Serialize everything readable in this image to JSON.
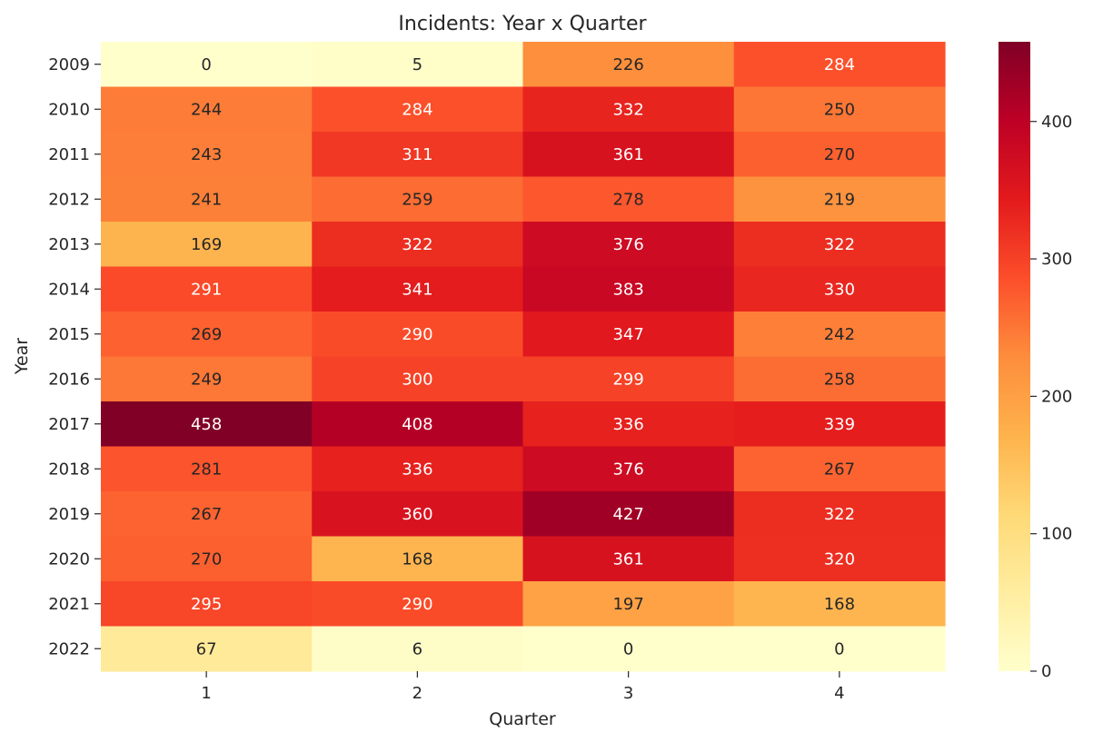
{
  "chart_data": {
    "type": "heatmap",
    "title": "Incidents: Year x Quarter",
    "xlabel": "Quarter",
    "ylabel": "Year",
    "x_categories": [
      "1",
      "2",
      "3",
      "4"
    ],
    "y_categories": [
      "2009",
      "2010",
      "2011",
      "2012",
      "2013",
      "2014",
      "2015",
      "2016",
      "2017",
      "2018",
      "2019",
      "2020",
      "2021",
      "2022"
    ],
    "values": [
      [
        0,
        5,
        226,
        284
      ],
      [
        244,
        284,
        332,
        250
      ],
      [
        243,
        311,
        361,
        270
      ],
      [
        241,
        259,
        278,
        219
      ],
      [
        169,
        322,
        376,
        322
      ],
      [
        291,
        341,
        383,
        330
      ],
      [
        269,
        290,
        347,
        242
      ],
      [
        249,
        300,
        299,
        258
      ],
      [
        458,
        408,
        336,
        339
      ],
      [
        281,
        336,
        376,
        267
      ],
      [
        267,
        360,
        427,
        322
      ],
      [
        270,
        168,
        361,
        320
      ],
      [
        295,
        290,
        197,
        168
      ],
      [
        67,
        6,
        0,
        0
      ]
    ],
    "colormap": "YlOrRd",
    "color_range": [
      0,
      458
    ],
    "colorbar_ticks": [
      0,
      100,
      200,
      300,
      400
    ],
    "colorbar_tick_labels": [
      "0",
      "100",
      "200",
      "300",
      "400"
    ],
    "annotations_shown": true,
    "grid": false
  }
}
